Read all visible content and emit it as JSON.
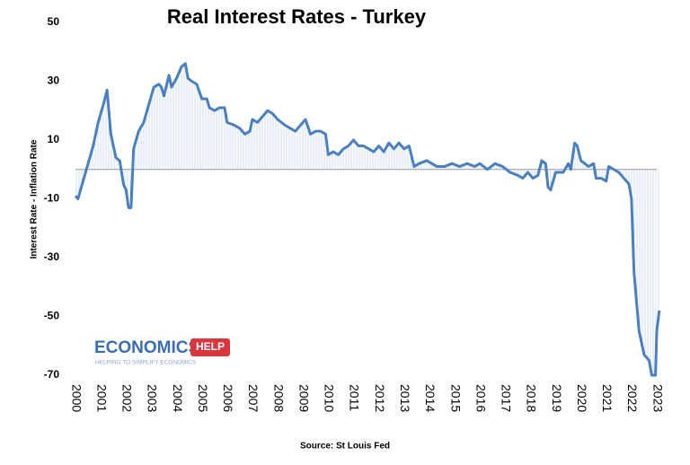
{
  "chart_data": {
    "type": "line",
    "title": "Real Interest Rates - Turkey",
    "y_label": "Interest Rate - Inflation Rate",
    "source": "Source: St Louis Fed",
    "logo": {
      "main": "ECONOMICS",
      "badge": "HELP",
      "tagline": "HELPING TO SIMPLIFY ECONOMICS"
    },
    "xlim": [
      2000,
      2023
    ],
    "xticks": [
      2000,
      2001,
      2002,
      2003,
      2004,
      2005,
      2006,
      2007,
      2008,
      2009,
      2010,
      2011,
      2012,
      2013,
      2014,
      2015,
      2016,
      2017,
      2018,
      2019,
      2020,
      2021,
      2022,
      2023
    ],
    "ylim": [
      -70,
      50
    ],
    "yticks": [
      -70,
      -50,
      -30,
      -10,
      10,
      30,
      50
    ],
    "grid": false,
    "series": [
      {
        "name": "Real interest rate",
        "color": "#4a7fc0",
        "x": [
          2000.0,
          2000.1,
          2000.3,
          2000.5,
          2000.7,
          2000.9,
          2001.1,
          2001.25,
          2001.4,
          2001.6,
          2001.75,
          2001.9,
          2002.0,
          2002.1,
          2002.2,
          2002.3,
          2002.5,
          2002.7,
          2002.9,
          2003.1,
          2003.3,
          2003.4,
          2003.5,
          2003.7,
          2003.8,
          2004.0,
          2004.2,
          2004.35,
          2004.45,
          2004.6,
          2004.8,
          2005.0,
          2005.2,
          2005.3,
          2005.5,
          2005.7,
          2005.9,
          2006.0,
          2006.3,
          2006.5,
          2006.7,
          2006.9,
          2007.0,
          2007.2,
          2007.4,
          2007.6,
          2007.8,
          2008.0,
          2008.3,
          2008.5,
          2008.7,
          2008.9,
          2009.1,
          2009.3,
          2009.5,
          2009.7,
          2009.9,
          2010.0,
          2010.2,
          2010.4,
          2010.6,
          2010.8,
          2011.0,
          2011.2,
          2011.4,
          2011.6,
          2011.8,
          2012.0,
          2012.2,
          2012.4,
          2012.6,
          2012.8,
          2013.0,
          2013.2,
          2013.4,
          2013.6,
          2013.9,
          2014.1,
          2014.3,
          2014.6,
          2014.9,
          2015.2,
          2015.5,
          2015.8,
          2016.0,
          2016.3,
          2016.6,
          2016.9,
          2017.2,
          2017.5,
          2017.7,
          2017.9,
          2018.1,
          2018.3,
          2018.45,
          2018.6,
          2018.7,
          2018.8,
          2019.0,
          2019.3,
          2019.5,
          2019.6,
          2019.75,
          2019.85,
          2020.0,
          2020.3,
          2020.5,
          2020.6,
          2020.8,
          2021.0,
          2021.1,
          2021.3,
          2021.5,
          2021.7,
          2021.9,
          2022.0,
          2022.1,
          2022.3,
          2022.5,
          2022.7,
          2022.8,
          2022.95,
          2023.0,
          2023.1
        ],
        "values": [
          -9,
          -10,
          -4,
          2,
          8,
          16,
          22,
          27,
          12,
          4,
          3,
          -5,
          -7,
          -13,
          -13,
          7,
          13,
          16,
          22,
          28,
          29,
          28,
          25,
          32,
          28,
          31,
          35,
          36,
          31,
          30,
          29,
          24,
          24,
          21,
          20,
          21,
          21,
          16,
          15,
          14,
          12,
          13,
          17,
          16,
          18,
          20,
          19,
          17,
          15,
          14,
          13,
          15,
          17,
          12,
          13,
          13,
          12,
          5,
          6,
          5,
          7,
          8,
          10,
          8,
          8,
          7,
          6,
          8,
          6,
          9,
          7,
          9,
          7,
          8,
          1,
          2,
          3,
          2,
          1,
          1,
          2,
          1,
          2,
          1,
          2,
          0,
          2,
          1,
          -1,
          -2,
          -3,
          -1,
          -3,
          -2,
          3,
          2,
          -6,
          -7,
          -1,
          -1,
          2,
          0,
          9,
          8,
          3,
          1,
          2,
          -3,
          -3,
          -4,
          1,
          0,
          -1,
          -3,
          -5,
          -10,
          -35,
          -55,
          -63,
          -65,
          -70,
          -70,
          -55,
          -48
        ]
      }
    ]
  }
}
